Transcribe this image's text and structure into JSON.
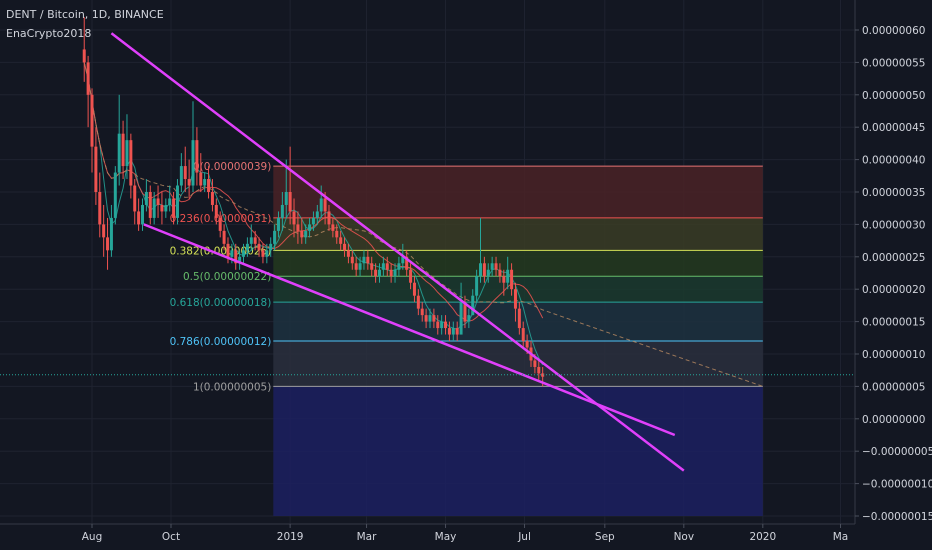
{
  "header": {
    "symbol": "DENT / Bitcoin",
    "interval": "1D",
    "exchange": "BINANCE",
    "author": "EnaCrypto2018"
  },
  "chart_data": {
    "type": "candlestick",
    "ylim": [
      -1.5e-07,
      6e-07
    ],
    "y_ticks": [
      {
        "value": 6e-07,
        "label": "0.00000060"
      },
      {
        "value": 5.5e-07,
        "label": "0.00000055"
      },
      {
        "value": 5e-07,
        "label": "0.00000050"
      },
      {
        "value": 4.5e-07,
        "label": "0.00000045"
      },
      {
        "value": 4e-07,
        "label": "0.00000040"
      },
      {
        "value": 3.5e-07,
        "label": "0.00000035"
      },
      {
        "value": 3e-07,
        "label": "0.00000030"
      },
      {
        "value": 2.5e-07,
        "label": "0.00000025"
      },
      {
        "value": 2e-07,
        "label": "0.00000020"
      },
      {
        "value": 1.5e-07,
        "label": "0.00000015"
      },
      {
        "value": 1e-07,
        "label": "0.00000010"
      },
      {
        "value": 5e-08,
        "label": "0.00000005"
      },
      {
        "value": 0.0,
        "label": "0.00000000"
      },
      {
        "value": -5e-08,
        "label": "−0.00000005"
      },
      {
        "value": -1e-07,
        "label": "−0.00000010"
      },
      {
        "value": -1.5e-07,
        "label": "−0.00000015"
      }
    ],
    "x_ticks": [
      {
        "date": "2018-08-01",
        "label": "Aug"
      },
      {
        "date": "2018-10-01",
        "label": "Oct"
      },
      {
        "date": "2019-01-01",
        "label": "2019"
      },
      {
        "date": "2019-03-01",
        "label": "Mar"
      },
      {
        "date": "2019-05-01",
        "label": "May"
      },
      {
        "date": "2019-07-01",
        "label": "Jul"
      },
      {
        "date": "2019-09-01",
        "label": "Sep"
      },
      {
        "date": "2019-11-01",
        "label": "Nov"
      },
      {
        "date": "2020-01-01",
        "label": "2020"
      },
      {
        "date": "2020-03-01",
        "label": "Ma"
      }
    ],
    "fibonacci": {
      "start_date": "2018-12-19",
      "end_date": "2020-01-01",
      "levels": [
        {
          "ratio": "0",
          "value": 3.9e-07,
          "label": "0(0.00000039)",
          "color": "#e57373",
          "fill": "#4a2226"
        },
        {
          "ratio": "0.236",
          "value": 3.1e-07,
          "label": "0.236(0.00000031)",
          "color": "#ef5350",
          "fill": "#3a3c24"
        },
        {
          "ratio": "0.382",
          "value": 2.6e-07,
          "label": "0.382(0.00000026)",
          "color": "#d4e157",
          "fill": "#25391f"
        },
        {
          "ratio": "0.5",
          "value": 2.2e-07,
          "label": "0.5(0.00000022)",
          "color": "#66bb6a",
          "fill": "#1b3a2e"
        },
        {
          "ratio": "0.618",
          "value": 1.8e-07,
          "label": "0.618(0.00000018)",
          "color": "#26a69a",
          "fill": "#1d3140"
        },
        {
          "ratio": "0.786",
          "value": 1.2e-07,
          "label": "0.786(0.00000012)",
          "color": "#4fc3f7",
          "fill": "#2a2f3d"
        },
        {
          "ratio": "1",
          "value": 5e-08,
          "label": "1(0.00000005)",
          "color": "#9e9e9e",
          "fill": "#1c2060"
        }
      ],
      "bottom": -1.5e-07
    },
    "trendlines": [
      {
        "from": {
          "date": "2018-08-16",
          "value": 5.95e-07
        },
        "to": {
          "date": "2019-11-01",
          "value": -8e-08
        },
        "color": "#e040fb"
      },
      {
        "from": {
          "date": "2018-09-10",
          "value": 3e-07
        },
        "to": {
          "date": "2019-10-25",
          "value": -2.5e-08
        },
        "color": "#e040fb"
      }
    ],
    "current_price": 6.8e-08,
    "candles": [
      {
        "date": "2018-07-26",
        "o": 57,
        "h": 62,
        "c": 55,
        "l": 52
      },
      {
        "date": "2018-07-29",
        "o": 55,
        "h": 56,
        "c": 50,
        "l": 45
      },
      {
        "date": "2018-08-01",
        "o": 50,
        "h": 51,
        "c": 42,
        "l": 38
      },
      {
        "date": "2018-08-04",
        "o": 42,
        "h": 45,
        "c": 35,
        "l": 33
      },
      {
        "date": "2018-08-07",
        "o": 35,
        "h": 38,
        "c": 30,
        "l": 28
      },
      {
        "date": "2018-08-10",
        "o": 30,
        "h": 33,
        "c": 28,
        "l": 25
      },
      {
        "date": "2018-08-13",
        "o": 28,
        "h": 31,
        "c": 26,
        "l": 23
      },
      {
        "date": "2018-08-16",
        "o": 26,
        "h": 33,
        "c": 31,
        "l": 25
      },
      {
        "date": "2018-08-19",
        "o": 31,
        "h": 39,
        "c": 38,
        "l": 30
      },
      {
        "date": "2018-08-22",
        "o": 38,
        "h": 50,
        "c": 44,
        "l": 36
      },
      {
        "date": "2018-08-25",
        "o": 44,
        "h": 46,
        "c": 39,
        "l": 37
      },
      {
        "date": "2018-08-28",
        "o": 39,
        "h": 47,
        "c": 43,
        "l": 37
      },
      {
        "date": "2018-08-31",
        "o": 43,
        "h": 44,
        "c": 36,
        "l": 34
      },
      {
        "date": "2018-09-03",
        "o": 36,
        "h": 37,
        "c": 32,
        "l": 30
      },
      {
        "date": "2018-09-06",
        "o": 32,
        "h": 34,
        "c": 30,
        "l": 29
      },
      {
        "date": "2018-09-09",
        "o": 30,
        "h": 34,
        "c": 33,
        "l": 29
      },
      {
        "date": "2018-09-12",
        "o": 33,
        "h": 37,
        "c": 35,
        "l": 32
      },
      {
        "date": "2018-09-15",
        "o": 35,
        "h": 36,
        "c": 31,
        "l": 30
      },
      {
        "date": "2018-09-18",
        "o": 31,
        "h": 35,
        "c": 34,
        "l": 30
      },
      {
        "date": "2018-09-21",
        "o": 34,
        "h": 36,
        "c": 33,
        "l": 31
      },
      {
        "date": "2018-09-24",
        "o": 33,
        "h": 35,
        "c": 32,
        "l": 30
      },
      {
        "date": "2018-09-27",
        "o": 32,
        "h": 34,
        "c": 33,
        "l": 31
      },
      {
        "date": "2018-09-30",
        "o": 33,
        "h": 36,
        "c": 34,
        "l": 32
      },
      {
        "date": "2018-10-03",
        "o": 34,
        "h": 35,
        "c": 31,
        "l": 30
      },
      {
        "date": "2018-10-06",
        "o": 31,
        "h": 37,
        "c": 36,
        "l": 30
      },
      {
        "date": "2018-10-09",
        "o": 36,
        "h": 41,
        "c": 39,
        "l": 35
      },
      {
        "date": "2018-10-12",
        "o": 39,
        "h": 42,
        "c": 37,
        "l": 35
      },
      {
        "date": "2018-10-15",
        "o": 37,
        "h": 40,
        "c": 36,
        "l": 34
      },
      {
        "date": "2018-10-18",
        "o": 36,
        "h": 49,
        "c": 43,
        "l": 35
      },
      {
        "date": "2018-10-21",
        "o": 43,
        "h": 45,
        "c": 38,
        "l": 36
      },
      {
        "date": "2018-10-24",
        "o": 38,
        "h": 41,
        "c": 36,
        "l": 35
      },
      {
        "date": "2018-10-27",
        "o": 36,
        "h": 38,
        "c": 37,
        "l": 35
      },
      {
        "date": "2018-10-30",
        "o": 37,
        "h": 39,
        "c": 35,
        "l": 34
      },
      {
        "date": "2018-11-02",
        "o": 35,
        "h": 37,
        "c": 33,
        "l": 32
      },
      {
        "date": "2018-11-05",
        "o": 33,
        "h": 34,
        "c": 31,
        "l": 30
      },
      {
        "date": "2018-11-08",
        "o": 31,
        "h": 32,
        "c": 29,
        "l": 28
      },
      {
        "date": "2018-11-11",
        "o": 29,
        "h": 30,
        "c": 27,
        "l": 26
      },
      {
        "date": "2018-11-14",
        "o": 27,
        "h": 28,
        "c": 25,
        "l": 24
      },
      {
        "date": "2018-11-17",
        "o": 25,
        "h": 27,
        "c": 26,
        "l": 24
      },
      {
        "date": "2018-11-20",
        "o": 26,
        "h": 27,
        "c": 24,
        "l": 23
      },
      {
        "date": "2018-11-23",
        "o": 24,
        "h": 26,
        "c": 25,
        "l": 23
      },
      {
        "date": "2018-11-26",
        "o": 25,
        "h": 27,
        "c": 26,
        "l": 24
      },
      {
        "date": "2018-11-29",
        "o": 26,
        "h": 28,
        "c": 27,
        "l": 25
      },
      {
        "date": "2018-12-02",
        "o": 27,
        "h": 30,
        "c": 28,
        "l": 26
      },
      {
        "date": "2018-12-05",
        "o": 28,
        "h": 29,
        "c": 27,
        "l": 26
      },
      {
        "date": "2018-12-08",
        "o": 27,
        "h": 28,
        "c": 26,
        "l": 25
      },
      {
        "date": "2018-12-11",
        "o": 26,
        "h": 27,
        "c": 25,
        "l": 24
      },
      {
        "date": "2018-12-14",
        "o": 25,
        "h": 27,
        "c": 26,
        "l": 24
      },
      {
        "date": "2018-12-17",
        "o": 26,
        "h": 28,
        "c": 27,
        "l": 25
      },
      {
        "date": "2018-12-20",
        "o": 27,
        "h": 30,
        "c": 29,
        "l": 26
      },
      {
        "date": "2018-12-23",
        "o": 29,
        "h": 32,
        "c": 31,
        "l": 28
      },
      {
        "date": "2018-12-26",
        "o": 31,
        "h": 35,
        "c": 33,
        "l": 29
      },
      {
        "date": "2018-12-29",
        "o": 33,
        "h": 40,
        "c": 35,
        "l": 31
      },
      {
        "date": "2019-01-01",
        "o": 35,
        "h": 42,
        "c": 32,
        "l": 30
      },
      {
        "date": "2019-01-04",
        "o": 32,
        "h": 34,
        "c": 30,
        "l": 28
      },
      {
        "date": "2019-01-07",
        "o": 30,
        "h": 32,
        "c": 29,
        "l": 27
      },
      {
        "date": "2019-01-10",
        "o": 29,
        "h": 31,
        "c": 28,
        "l": 27
      },
      {
        "date": "2019-01-13",
        "o": 28,
        "h": 30,
        "c": 29,
        "l": 27
      },
      {
        "date": "2019-01-16",
        "o": 29,
        "h": 31,
        "c": 30,
        "l": 28
      },
      {
        "date": "2019-01-19",
        "o": 30,
        "h": 32,
        "c": 31,
        "l": 29
      },
      {
        "date": "2019-01-22",
        "o": 31,
        "h": 33,
        "c": 32,
        "l": 30
      },
      {
        "date": "2019-01-25",
        "o": 32,
        "h": 36,
        "c": 34,
        "l": 31
      },
      {
        "date": "2019-01-28",
        "o": 34,
        "h": 35,
        "c": 32,
        "l": 30
      },
      {
        "date": "2019-01-31",
        "o": 32,
        "h": 33,
        "c": 30,
        "l": 29
      },
      {
        "date": "2019-02-03",
        "o": 30,
        "h": 31,
        "c": 29,
        "l": 28
      },
      {
        "date": "2019-02-06",
        "o": 29,
        "h": 30,
        "c": 28,
        "l": 27
      },
      {
        "date": "2019-02-09",
        "o": 28,
        "h": 29,
        "c": 27,
        "l": 26
      },
      {
        "date": "2019-02-12",
        "o": 27,
        "h": 28,
        "c": 26,
        "l": 25
      },
      {
        "date": "2019-02-15",
        "o": 26,
        "h": 27,
        "c": 25,
        "l": 24
      },
      {
        "date": "2019-02-18",
        "o": 25,
        "h": 26,
        "c": 24,
        "l": 23
      },
      {
        "date": "2019-02-21",
        "o": 24,
        "h": 25,
        "c": 23,
        "l": 22
      },
      {
        "date": "2019-02-24",
        "o": 23,
        "h": 25,
        "c": 24,
        "l": 22
      },
      {
        "date": "2019-02-27",
        "o": 24,
        "h": 26,
        "c": 25,
        "l": 23
      },
      {
        "date": "2019-03-02",
        "o": 25,
        "h": 26,
        "c": 24,
        "l": 23
      },
      {
        "date": "2019-03-05",
        "o": 24,
        "h": 25,
        "c": 23,
        "l": 22
      },
      {
        "date": "2019-03-08",
        "o": 23,
        "h": 24,
        "c": 22,
        "l": 21
      },
      {
        "date": "2019-03-11",
        "o": 22,
        "h": 24,
        "c": 23,
        "l": 21
      },
      {
        "date": "2019-03-14",
        "o": 23,
        "h": 25,
        "c": 24,
        "l": 22
      },
      {
        "date": "2019-03-17",
        "o": 24,
        "h": 25,
        "c": 23,
        "l": 22
      },
      {
        "date": "2019-03-20",
        "o": 23,
        "h": 24,
        "c": 22,
        "l": 21
      },
      {
        "date": "2019-03-23",
        "o": 22,
        "h": 24,
        "c": 23,
        "l": 21
      },
      {
        "date": "2019-03-26",
        "o": 23,
        "h": 25,
        "c": 24,
        "l": 22
      },
      {
        "date": "2019-03-29",
        "o": 24,
        "h": 27,
        "c": 25,
        "l": 23
      },
      {
        "date": "2019-04-01",
        "o": 25,
        "h": 26,
        "c": 23,
        "l": 22
      },
      {
        "date": "2019-04-04",
        "o": 23,
        "h": 24,
        "c": 21,
        "l": 20
      },
      {
        "date": "2019-04-07",
        "o": 21,
        "h": 22,
        "c": 19,
        "l": 18
      },
      {
        "date": "2019-04-10",
        "o": 19,
        "h": 20,
        "c": 17,
        "l": 16
      },
      {
        "date": "2019-04-13",
        "o": 17,
        "h": 18,
        "c": 16,
        "l": 15
      },
      {
        "date": "2019-04-16",
        "o": 16,
        "h": 17,
        "c": 15,
        "l": 14
      },
      {
        "date": "2019-04-19",
        "o": 15,
        "h": 17,
        "c": 16,
        "l": 14
      },
      {
        "date": "2019-04-22",
        "o": 16,
        "h": 17,
        "c": 15,
        "l": 14
      },
      {
        "date": "2019-04-25",
        "o": 15,
        "h": 16,
        "c": 14,
        "l": 13
      },
      {
        "date": "2019-04-28",
        "o": 14,
        "h": 16,
        "c": 15,
        "l": 13
      },
      {
        "date": "2019-05-01",
        "o": 15,
        "h": 16,
        "c": 14,
        "l": 13
      },
      {
        "date": "2019-05-04",
        "o": 14,
        "h": 15,
        "c": 13,
        "l": 12
      },
      {
        "date": "2019-05-07",
        "o": 13,
        "h": 15,
        "c": 14,
        "l": 12
      },
      {
        "date": "2019-05-10",
        "o": 14,
        "h": 15,
        "c": 13,
        "l": 12
      },
      {
        "date": "2019-05-13",
        "o": 13,
        "h": 21,
        "c": 18,
        "l": 13
      },
      {
        "date": "2019-05-16",
        "o": 18,
        "h": 19,
        "c": 15,
        "l": 14
      },
      {
        "date": "2019-05-19",
        "o": 15,
        "h": 17,
        "c": 16,
        "l": 14
      },
      {
        "date": "2019-05-22",
        "o": 16,
        "h": 20,
        "c": 19,
        "l": 16
      },
      {
        "date": "2019-05-25",
        "o": 19,
        "h": 23,
        "c": 22,
        "l": 18
      },
      {
        "date": "2019-05-28",
        "o": 22,
        "h": 31,
        "c": 24,
        "l": 21
      },
      {
        "date": "2019-05-31",
        "o": 24,
        "h": 25,
        "c": 22,
        "l": 21
      },
      {
        "date": "2019-06-03",
        "o": 22,
        "h": 24,
        "c": 23,
        "l": 21
      },
      {
        "date": "2019-06-06",
        "o": 23,
        "h": 25,
        "c": 24,
        "l": 22
      },
      {
        "date": "2019-06-09",
        "o": 24,
        "h": 25,
        "c": 23,
        "l": 22
      },
      {
        "date": "2019-06-12",
        "o": 23,
        "h": 24,
        "c": 22,
        "l": 21
      },
      {
        "date": "2019-06-15",
        "o": 22,
        "h": 23,
        "c": 21,
        "l": 19
      },
      {
        "date": "2019-06-18",
        "o": 21,
        "h": 25,
        "c": 23,
        "l": 20
      },
      {
        "date": "2019-06-21",
        "o": 23,
        "h": 24,
        "c": 20,
        "l": 19
      },
      {
        "date": "2019-06-24",
        "o": 20,
        "h": 21,
        "c": 17,
        "l": 15
      },
      {
        "date": "2019-06-27",
        "o": 17,
        "h": 18,
        "c": 14,
        "l": 13
      },
      {
        "date": "2019-06-30",
        "o": 14,
        "h": 15,
        "c": 12,
        "l": 11
      },
      {
        "date": "2019-07-03",
        "o": 12,
        "h": 13,
        "c": 11,
        "l": 10
      },
      {
        "date": "2019-07-06",
        "o": 11,
        "h": 12,
        "c": 9,
        "l": 8
      },
      {
        "date": "2019-07-09",
        "o": 9,
        "h": 10,
        "c": 8,
        "l": 7
      },
      {
        "date": "2019-07-12",
        "o": 8,
        "h": 9,
        "c": 7,
        "l": 6
      },
      {
        "date": "2019-07-15",
        "o": 7,
        "h": 8,
        "c": 6.5,
        "l": 5
      }
    ]
  },
  "colors": {
    "background": "#131722",
    "grid": "#1f2330",
    "axis_text": "#d1d4dc",
    "candle_up": "#26a69a",
    "candle_down": "#ef5350",
    "trendline": "#e040fb",
    "current_price_line": "#26a69a"
  }
}
